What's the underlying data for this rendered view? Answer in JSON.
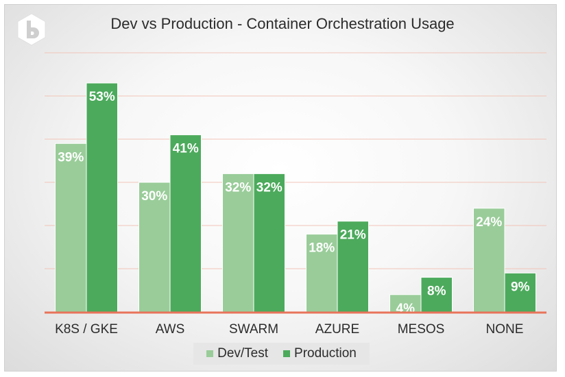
{
  "chart_data": {
    "type": "bar",
    "title": "Dev vs Production - Container Orchestration Usage",
    "categories": [
      "K8S / GKE",
      "AWS",
      "SWARM",
      "AZURE",
      "MESOS",
      "NONE"
    ],
    "series": [
      {
        "name": "Dev/Test",
        "values": [
          39,
          30,
          32,
          18,
          4,
          24
        ],
        "labels": [
          "39%",
          "30%",
          "32%",
          "18%",
          "4%",
          "24%"
        ],
        "color": "#99cc99"
      },
      {
        "name": "Production",
        "values": [
          53,
          41,
          32,
          21,
          8,
          9
        ],
        "labels": [
          "53%",
          "41%",
          "32%",
          "21%",
          "8%",
          "9%"
        ],
        "color": "#4caa5c"
      }
    ],
    "ylim": [
      0,
      60
    ],
    "grid": true,
    "legend": "bottom",
    "axis_color": "#e8735a",
    "grid_color": "#f2c4b8"
  },
  "logo": {
    "icon": "hexagon-b-logo-icon"
  }
}
